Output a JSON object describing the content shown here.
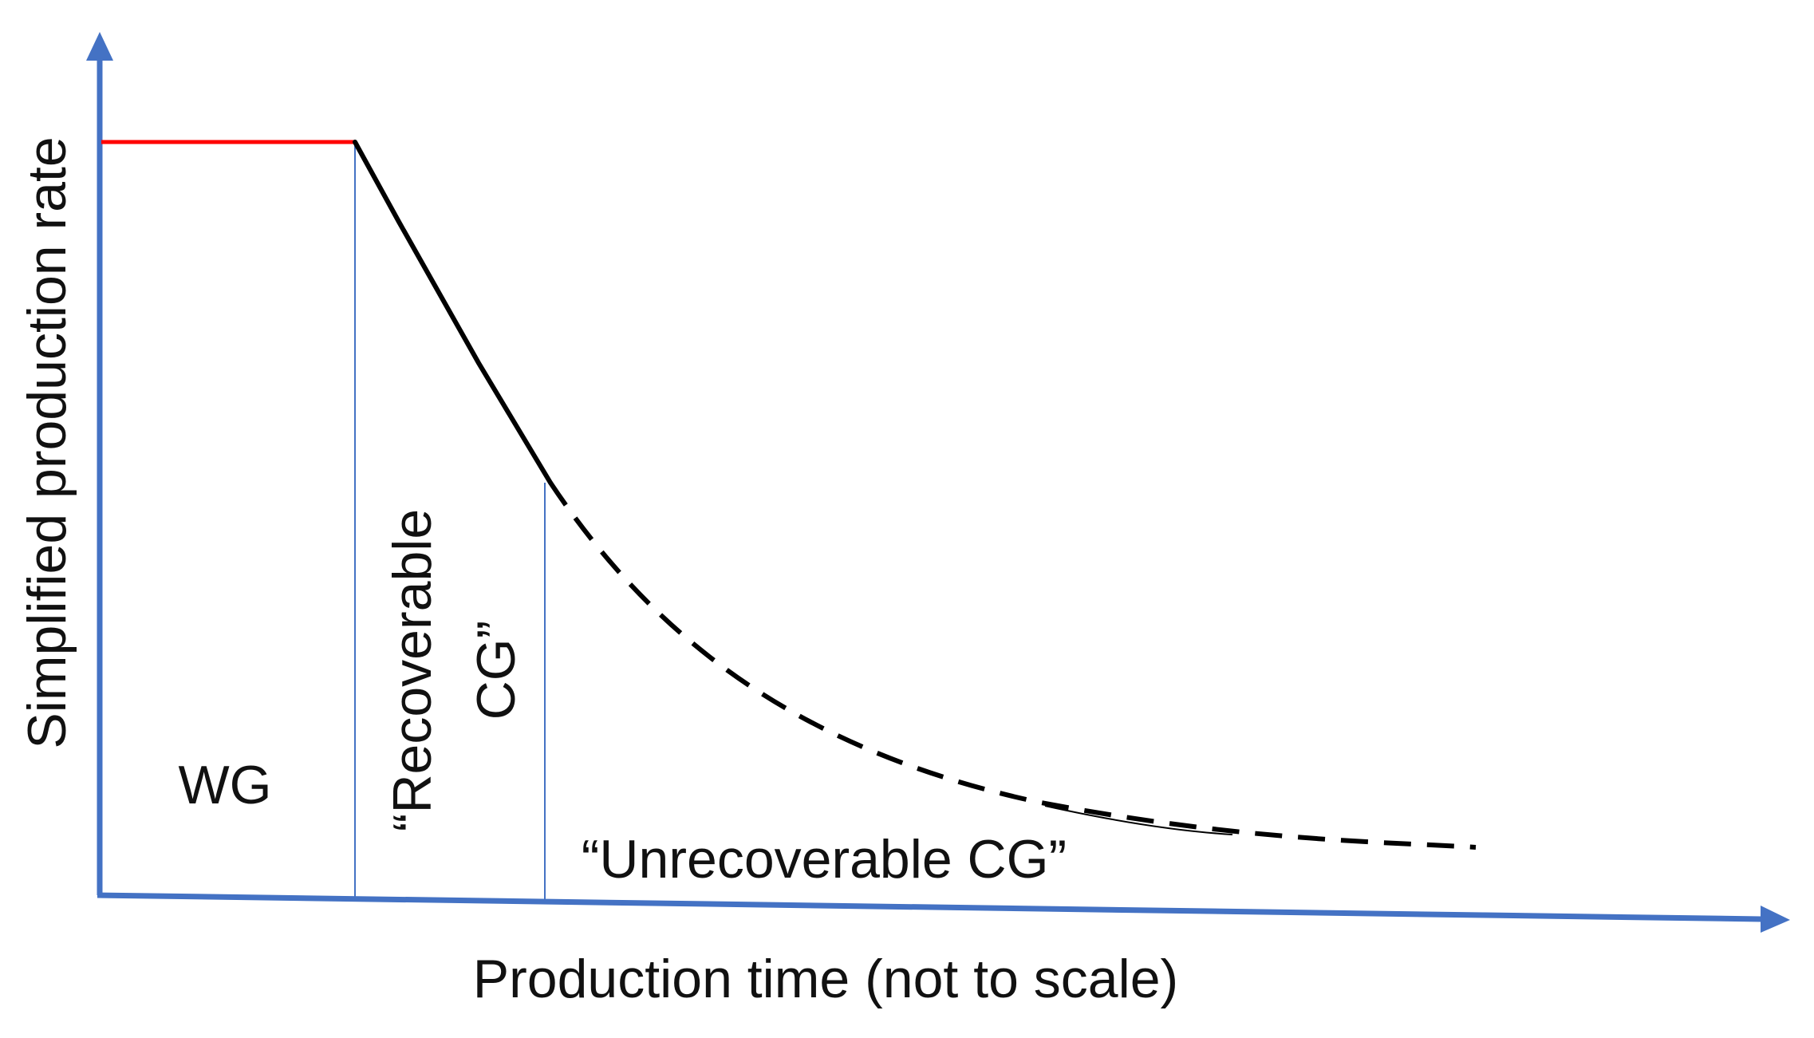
{
  "diagram": {
    "y_axis_label": "Simplified production rate",
    "x_axis_label": "Production time (not to scale)",
    "regions": {
      "wg": "WG",
      "recoverable_line1": "“Recoverable",
      "recoverable_line2": "CG”",
      "unrecoverable": "“Unrecoverable CG”"
    },
    "colors": {
      "axis": "#4472C4",
      "plateau": "#FF0000",
      "decline": "#000000",
      "divider": "#4472C4"
    }
  }
}
